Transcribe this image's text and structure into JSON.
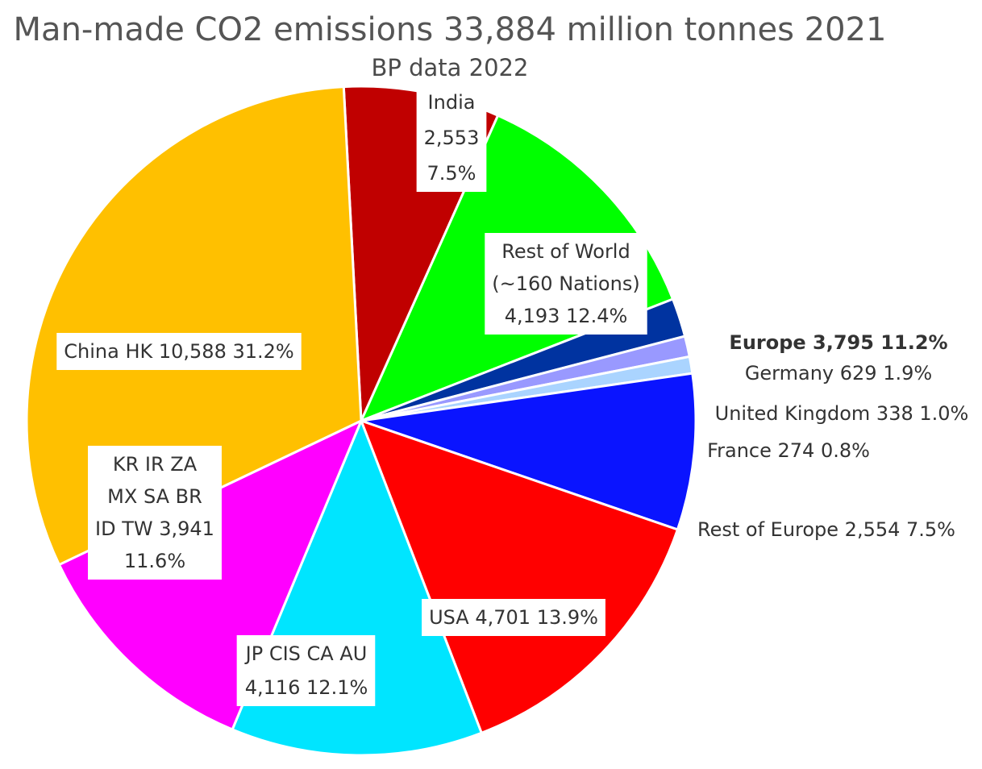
{
  "chart_data": {
    "type": "pie",
    "title": "Man-made CO2 emissions 33,884 million tonnes 2021",
    "subtitle": "BP data 2022",
    "total": 33884,
    "start_angle_deg": -3,
    "slices": [
      {
        "name": "India",
        "value": 2553,
        "percent": "7.5%",
        "color": "#c00000",
        "label_lines": [
          "India",
          "2,553",
          "7.5%"
        ]
      },
      {
        "name": "Rest of World",
        "value": 4193,
        "percent": "12.4%",
        "color": "#00ff00",
        "label_lines": [
          "Rest of World",
          "(~160 Nations)",
          "4,193 12.4%"
        ]
      },
      {
        "name": "Germany",
        "value": 629,
        "percent": "1.9%",
        "color": "#0033a0",
        "label_lines": [
          "Germany 629 1.9%"
        ]
      },
      {
        "name": "United Kingdom",
        "value": 338,
        "percent": "1.0%",
        "color": "#9999ff",
        "label_lines": [
          "United Kingdom 338 1.0%"
        ]
      },
      {
        "name": "France",
        "value": 274,
        "percent": "0.8%",
        "color": "#aad4ff",
        "label_lines": [
          "France 274 0.8%"
        ]
      },
      {
        "name": "Rest of Europe",
        "value": 2554,
        "percent": "7.5%",
        "color": "#0a14ff",
        "label_lines": [
          "Rest of Europe 2,554 7.5%"
        ]
      },
      {
        "name": "USA",
        "value": 4701,
        "percent": "13.9%",
        "color": "#ff0000",
        "label_lines": [
          "USA 4,701 13.9%"
        ]
      },
      {
        "name": "JP CIS CA AU",
        "value": 4116,
        "percent": "12.1%",
        "color": "#00e5ff",
        "label_lines": [
          "JP CIS CA AU",
          "4,116 12.1%"
        ]
      },
      {
        "name": "KR IR ZA MX SA BR ID TW",
        "value": 3941,
        "percent": "11.6%",
        "color": "#ff00ff",
        "label_lines": [
          "KR IR ZA",
          "MX SA BR",
          "ID TW 3,941",
          "11.6%"
        ]
      },
      {
        "name": "China HK",
        "value": 10588,
        "percent": "31.2%",
        "color": "#ffc000",
        "label_lines": [
          "China HK 10,588 31.2%"
        ]
      }
    ],
    "group_label": "Europe 3,795 11.2%"
  }
}
